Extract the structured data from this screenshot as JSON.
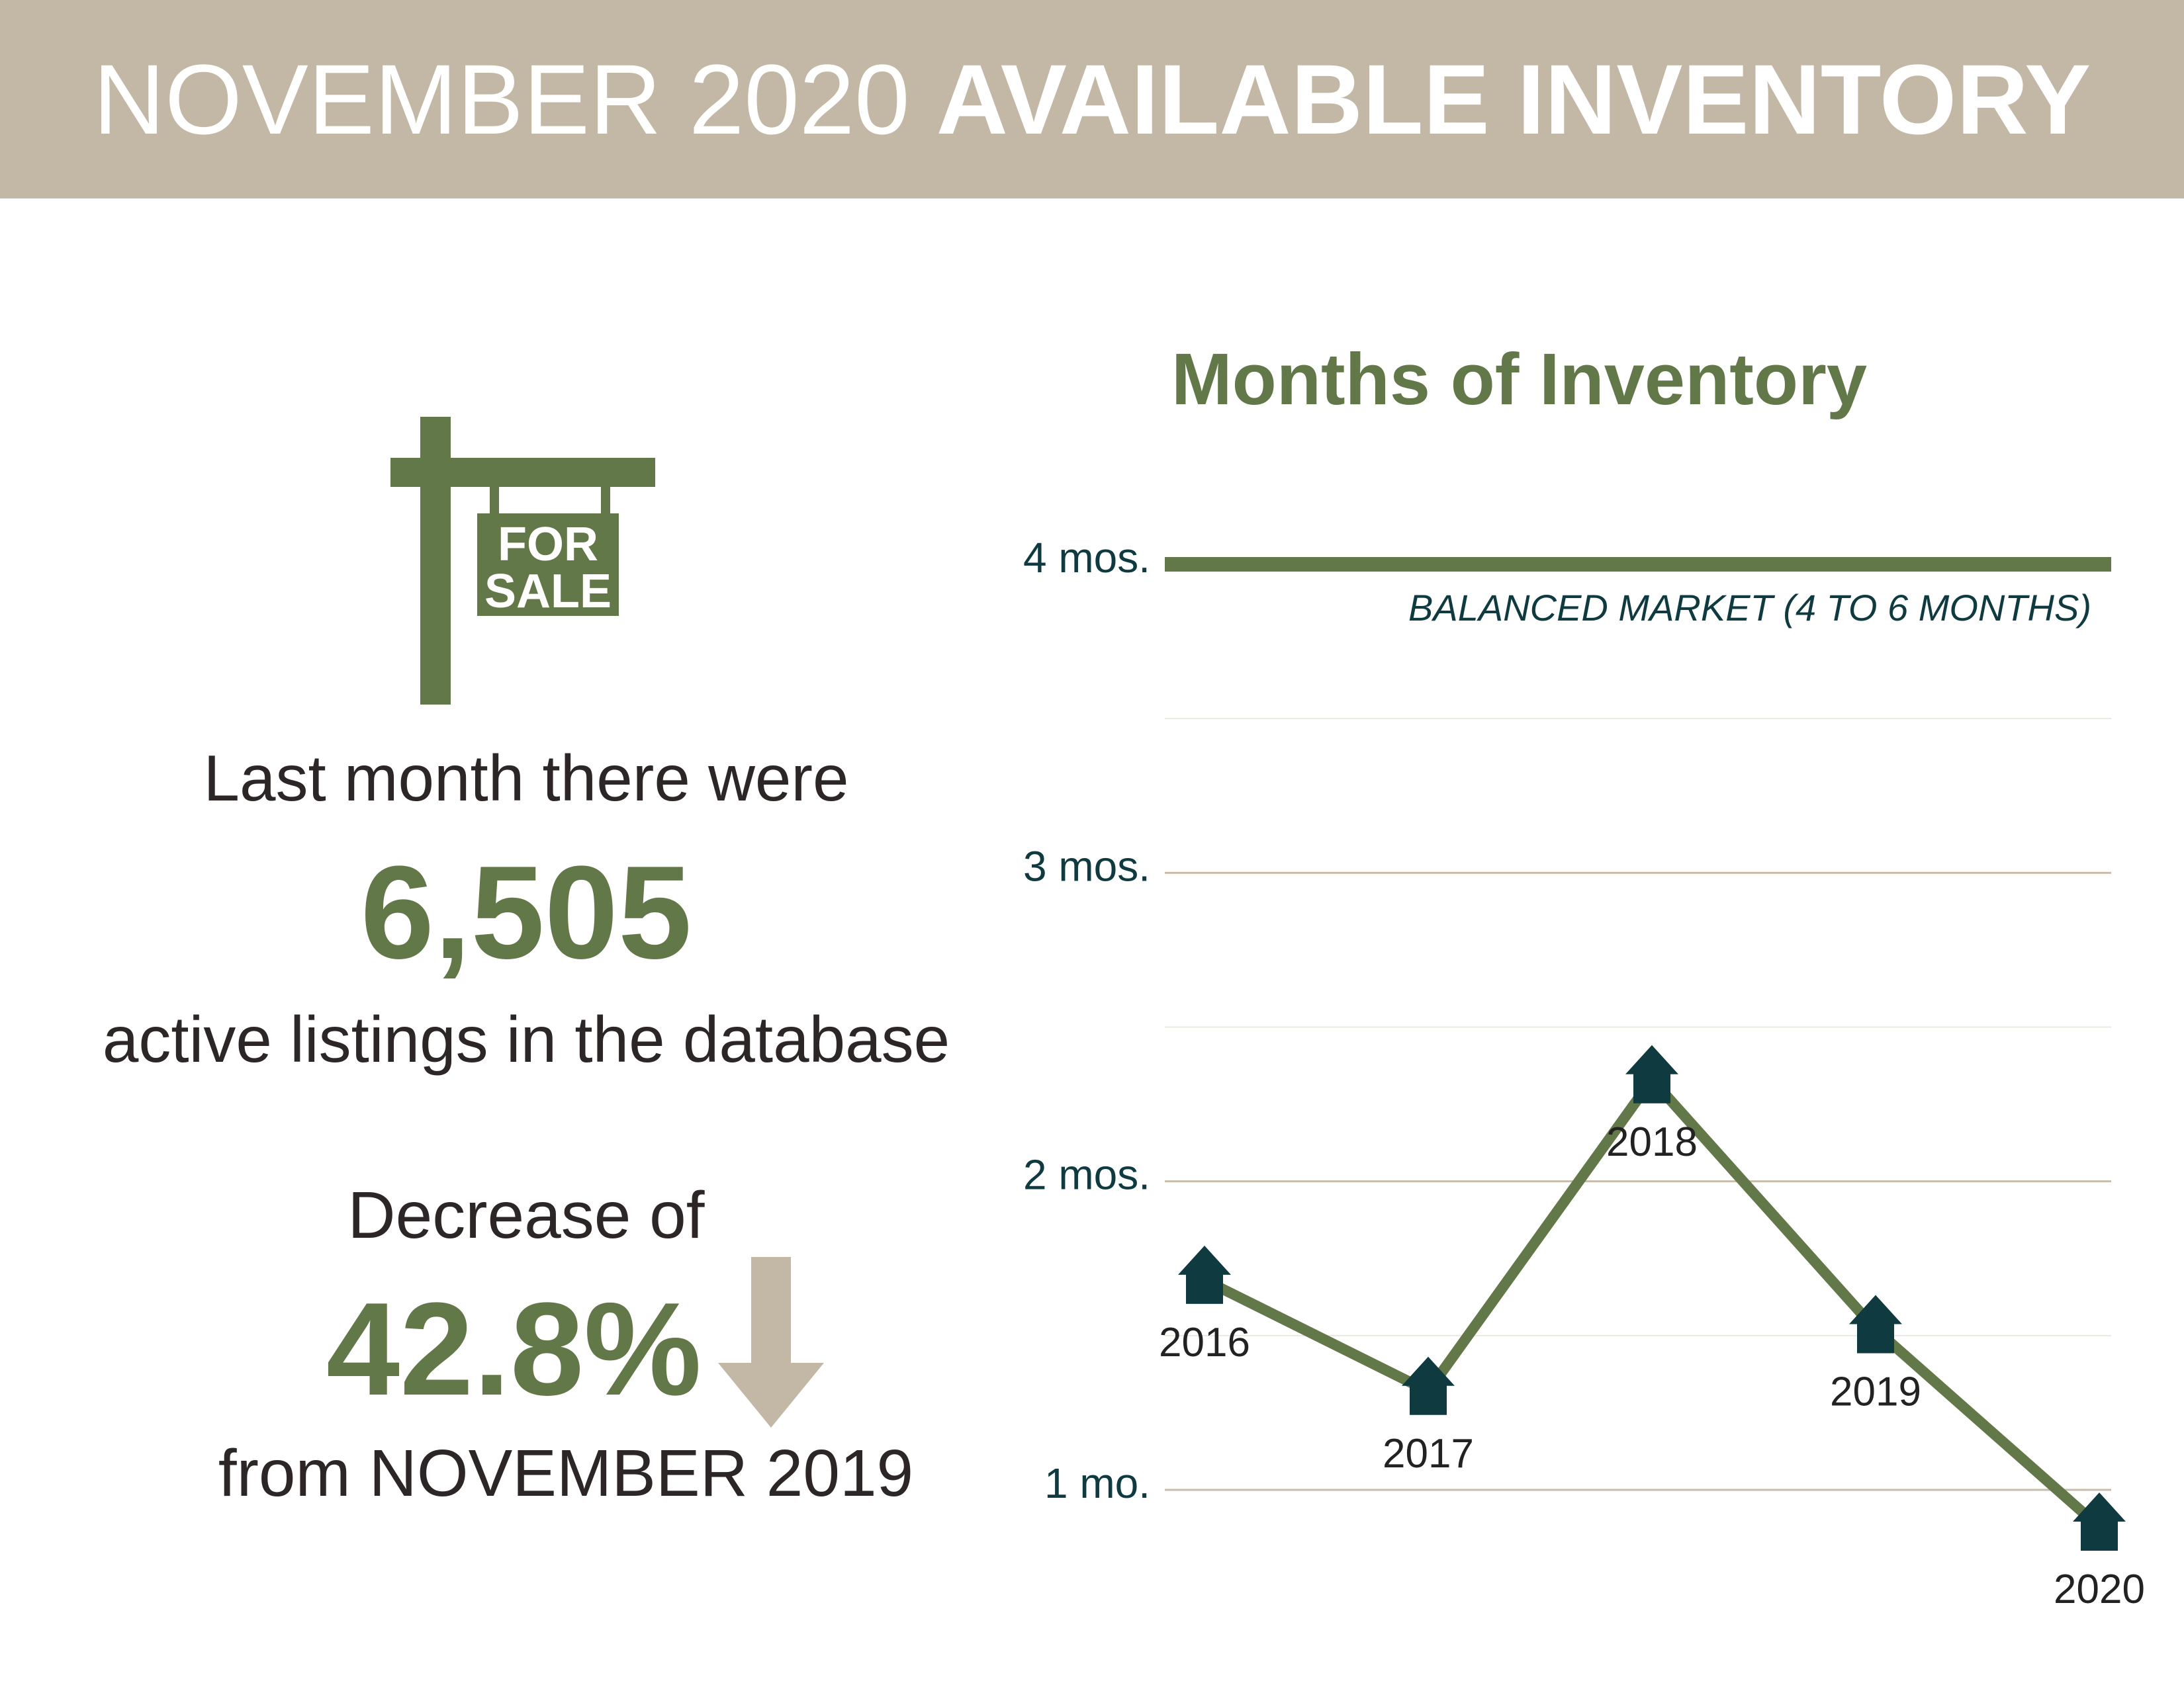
{
  "header": {
    "title_light": "NOVEMBER 2020",
    "title_bold": "AVAILABLE INVENTORY"
  },
  "sign": {
    "line1": "FOR",
    "line2": "SALE"
  },
  "stats": {
    "intro": "Last month there were",
    "listings_value": "6,505",
    "listings_caption": "active listings in the database",
    "decrease_label": "Decrease of",
    "decrease_value": "42.8%",
    "decrease_caption": "from NOVEMBER 2019"
  },
  "colors": {
    "header_bg": "#c3b8a6",
    "accent_green": "#637848",
    "marker_dark": "#0f3a40",
    "arrow_tan": "#c3b8a6",
    "body_text": "#2d2626"
  },
  "icons": {
    "sign": "for-sale-sign-icon",
    "arrow": "down-arrow-icon",
    "marker": "house-icon"
  },
  "chart_data": {
    "type": "line",
    "title": "Months of Inventory",
    "categories": [
      "2016",
      "2017",
      "2018",
      "2019",
      "2020"
    ],
    "values": [
      1.68,
      1.32,
      2.33,
      1.52,
      0.88
    ],
    "ylim": [
      0.8,
      4.1
    ],
    "y_ticks": [
      {
        "value": 4,
        "label": "4 mos."
      },
      {
        "value": 3,
        "label": "3 mos."
      },
      {
        "value": 2,
        "label": "2 mos."
      },
      {
        "value": 1,
        "label": "1 mo."
      }
    ],
    "reference_line": {
      "value": 4,
      "label": "BALANCED MARKET (4 TO 6 MONTHS)"
    },
    "label_positions": [
      "below",
      "below",
      "below",
      "below",
      "below"
    ],
    "grid": true,
    "marker": "house"
  }
}
